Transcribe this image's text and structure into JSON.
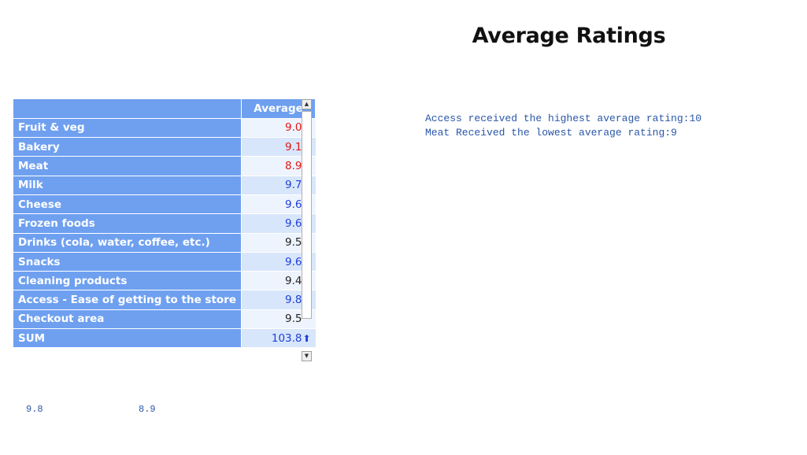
{
  "title": "Average Ratings",
  "summary": {
    "highest": "Access received the highest average rating:10",
    "lowest": "Meat Received the lowest average rating:9"
  },
  "table": {
    "header_category": "",
    "header_average": "Average",
    "rows": [
      {
        "label": "Fruit & veg",
        "value": "9.0",
        "trend": "down"
      },
      {
        "label": "Bakery",
        "value": "9.1",
        "trend": "down"
      },
      {
        "label": "Meat",
        "value": "8.9",
        "trend": "down"
      },
      {
        "label": "Milk",
        "value": "9.7",
        "trend": "up"
      },
      {
        "label": "Cheese",
        "value": "9.6",
        "trend": "up"
      },
      {
        "label": "Frozen foods",
        "value": "9.6",
        "trend": "up"
      },
      {
        "label": "Drinks (cola, water, coffee, etc.)",
        "value": "9.5",
        "trend": "none"
      },
      {
        "label": "Snacks",
        "value": "9.6",
        "trend": "up"
      },
      {
        "label": "Cleaning products",
        "value": "9.4",
        "trend": "none"
      },
      {
        "label": "Access - Ease of getting to the store",
        "value": "9.8",
        "trend": "up"
      },
      {
        "label": "Checkout area",
        "value": "9.5",
        "trend": "none"
      },
      {
        "label": "SUM",
        "value": "103.8",
        "trend": "up"
      }
    ]
  },
  "footer": {
    "left_value": "9.8",
    "right_value": "8.9"
  },
  "icons": {
    "up": "arrow-up-icon",
    "down": "arrow-down-icon"
  },
  "colors": {
    "header_bg": "#6fa0f0",
    "down": "#e31414",
    "up": "#1f3fd6"
  }
}
